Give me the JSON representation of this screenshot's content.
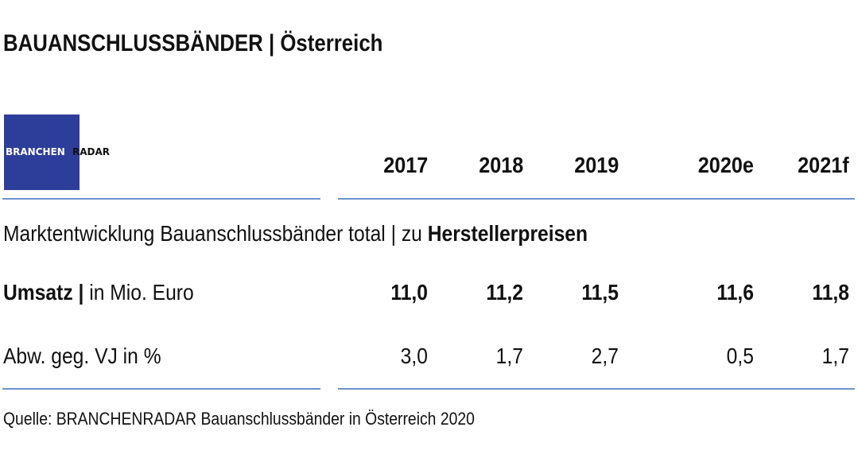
{
  "title": "BAUANSCHLUSSBÄNDER | Österreich",
  "logo": {
    "text_left": "BRANCHEN",
    "text_right": "RADAR",
    "color": "#2d3e9a"
  },
  "chart_data": {
    "type": "table",
    "columns": [
      "2017",
      "2018",
      "2019",
      "2020e",
      "2021f"
    ],
    "section_label_regular": "Marktentwicklung Bauanschlussbänder total | zu ",
    "section_label_bold": "Herstellerpreisen",
    "rows": [
      {
        "label_bold": "Umsatz |",
        "label": " in Mio. Euro",
        "values": [
          "11,0",
          "11,2",
          "11,5",
          "11,6",
          "11,8"
        ],
        "bold": true
      },
      {
        "label_bold": "",
        "label": "Abw. geg. VJ in %",
        "values": [
          "3,0",
          "1,7",
          "2,7",
          "0,5",
          "1,7"
        ],
        "bold": false
      }
    ],
    "line_color": "#6a94cf"
  },
  "source": "Quelle: BRANCHENRADAR Bauanschlussbänder in Österreich 2020"
}
